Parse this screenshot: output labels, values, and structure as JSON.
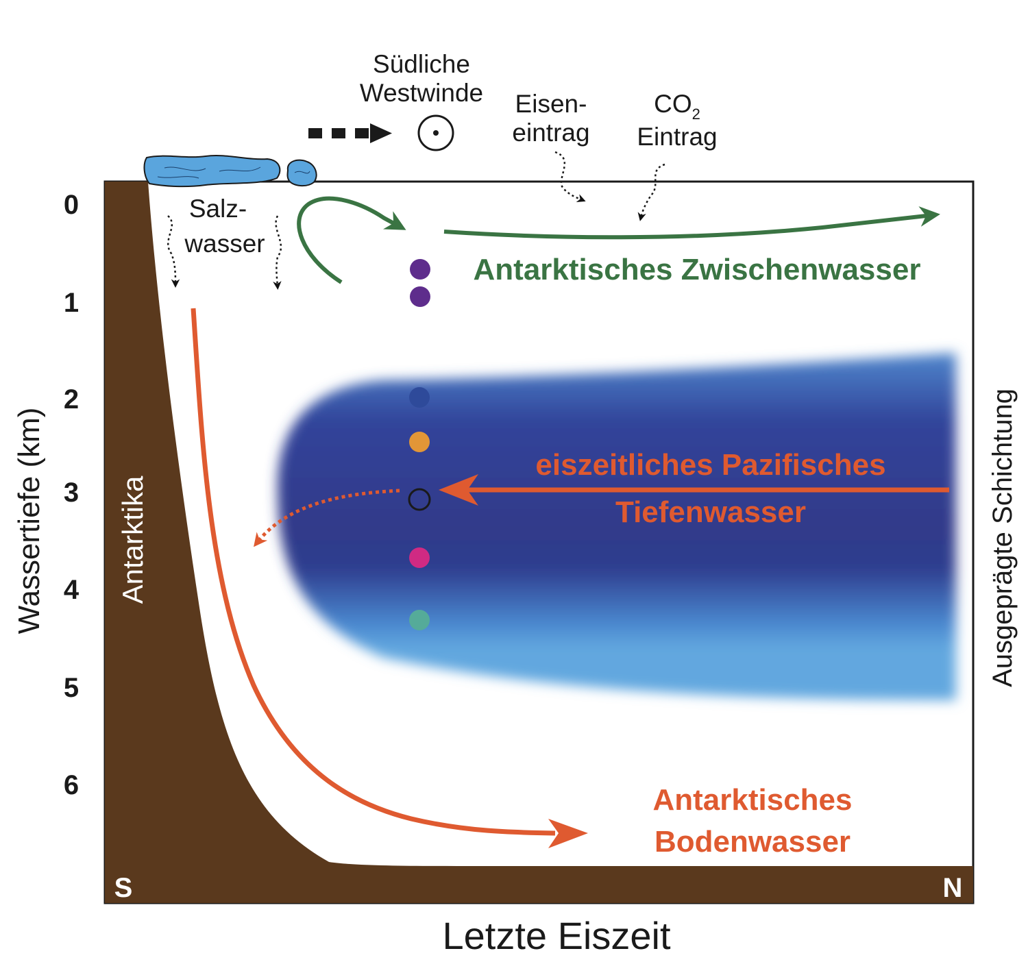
{
  "title": "Letzte Eiszeit",
  "y_axis": {
    "label": "Wassertiefe (km)",
    "ticks": [
      "0",
      "1",
      "2",
      "3",
      "4",
      "5",
      "6"
    ]
  },
  "right_label": "Ausgeprägte Schichtung",
  "continent_label": "Antarktika",
  "direction": {
    "south": "S",
    "north": "N"
  },
  "wind": {
    "line1": "Südliche",
    "line2": "Westwinde"
  },
  "iron": {
    "line1": "Eisen-",
    "line2": "eintrag"
  },
  "co2": {
    "co": "CO",
    "sub": "2",
    "line2": "Eintrag"
  },
  "salt": {
    "line1": "Salz-",
    "line2": "wasser"
  },
  "water_masses": {
    "intermediate": "Antarktisches Zwischenwasser",
    "pacific_line1": "eiszeitliches Pazifisches",
    "pacific_line2": "Tiefenwasser",
    "bottom_line1": "Antarktisches",
    "bottom_line2": "Bodenwasser"
  },
  "colors": {
    "green": "#3a7443",
    "orange": "#df5a30",
    "land": "#5a391d",
    "ice": "#5aa5dd",
    "deep_blue": "#2f3a8c",
    "light_blue": "#62a7df"
  }
}
